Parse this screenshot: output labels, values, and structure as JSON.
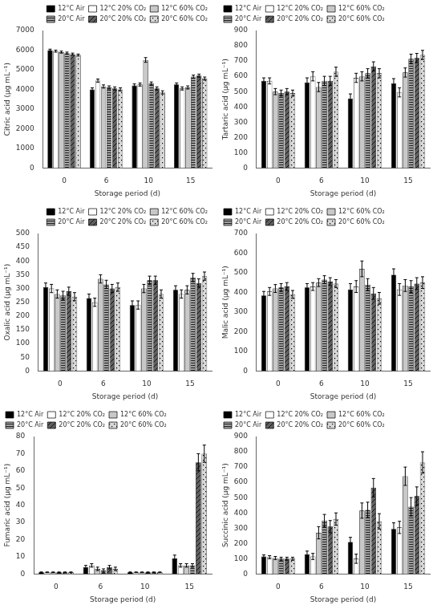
{
  "chart_data": [
    {
      "type": "bar",
      "categories": [
        "0",
        "6",
        "10",
        "15"
      ],
      "xlabel": "Storage period (d)",
      "ylabel": "Citric acid (μg mL⁻¹)",
      "ylim": [
        0,
        7000
      ],
      "yticks": [
        0,
        1000,
        2000,
        3000,
        4000,
        5000,
        6000,
        7000
      ],
      "grid": false,
      "legend": "upper right",
      "series": [
        {
          "name": "12°C Air",
          "color": "#000000",
          "values": [
            6000,
            4000,
            4200,
            4250
          ],
          "errors": [
            50,
            80,
            80,
            80
          ]
        },
        {
          "name": "12°C 20% CO₂",
          "color": "#ffffff",
          "values": [
            5950,
            4450,
            4250,
            4050
          ],
          "errors": [
            50,
            80,
            80,
            80
          ]
        },
        {
          "name": "12°C 60% CO₂",
          "color": "#c8c8c8",
          "values": [
            5900,
            4150,
            5500,
            4100
          ],
          "errors": [
            50,
            80,
            120,
            80
          ]
        },
        {
          "name": "20°C Air",
          "color": "#a0a0a0",
          "values": [
            5850,
            4100,
            4300,
            4650
          ],
          "errors": [
            50,
            80,
            80,
            80
          ]
        },
        {
          "name": "20°C 20% CO₂",
          "color": "#606060",
          "values": [
            5800,
            4050,
            4050,
            4700
          ],
          "errors": [
            50,
            80,
            80,
            80
          ]
        },
        {
          "name": "20°C 60% CO₂",
          "color": "#d8d8d8",
          "values": [
            5750,
            4000,
            3850,
            4550
          ],
          "errors": [
            50,
            80,
            80,
            80
          ]
        }
      ]
    },
    {
      "type": "bar",
      "categories": [
        "0",
        "6",
        "10",
        "15"
      ],
      "xlabel": "Storage period (d)",
      "ylabel": "Tartaric acid (μg mL⁻¹)",
      "ylim": [
        0,
        900
      ],
      "yticks": [
        0,
        100,
        200,
        300,
        400,
        500,
        600,
        700,
        800,
        900
      ],
      "grid": false,
      "legend": "upper left",
      "series": [
        {
          "name": "12°C Air",
          "color": "#000000",
          "values": [
            570,
            560,
            455,
            555
          ],
          "errors": [
            20,
            30,
            30,
            30
          ]
        },
        {
          "name": "12°C 20% CO₂",
          "color": "#ffffff",
          "values": [
            570,
            600,
            590,
            495
          ],
          "errors": [
            20,
            30,
            30,
            30
          ]
        },
        {
          "name": "12°C 60% CO₂",
          "color": "#c8c8c8",
          "values": [
            500,
            530,
            600,
            625
          ],
          "errors": [
            20,
            30,
            30,
            30
          ]
        },
        {
          "name": "20°C Air",
          "color": "#a0a0a0",
          "values": [
            490,
            570,
            620,
            715
          ],
          "errors": [
            20,
            30,
            30,
            30
          ]
        },
        {
          "name": "20°C 20% CO₂",
          "color": "#606060",
          "values": [
            500,
            570,
            665,
            720
          ],
          "errors": [
            20,
            30,
            30,
            30
          ]
        },
        {
          "name": "20°C 60% CO₂",
          "color": "#d8d8d8",
          "values": [
            490,
            630,
            620,
            740
          ],
          "errors": [
            20,
            30,
            30,
            30
          ]
        }
      ]
    },
    {
      "type": "bar",
      "categories": [
        "0",
        "6",
        "10",
        "15"
      ],
      "xlabel": "Storage period (d)",
      "ylabel": "Oxalic acid (μg mL⁻¹)",
      "ylim": [
        0,
        500
      ],
      "yticks": [
        0,
        50,
        100,
        150,
        200,
        250,
        300,
        350,
        400,
        450,
        500
      ],
      "grid": false,
      "legend": "upper right",
      "series": [
        {
          "name": "12°C Air",
          "color": "#000000",
          "values": [
            305,
            265,
            240,
            295
          ],
          "errors": [
            15,
            15,
            15,
            15
          ]
        },
        {
          "name": "12°C 20% CO₂",
          "color": "#ffffff",
          "values": [
            300,
            250,
            240,
            280
          ],
          "errors": [
            15,
            15,
            15,
            15
          ]
        },
        {
          "name": "12°C 60% CO₂",
          "color": "#c8c8c8",
          "values": [
            280,
            335,
            300,
            295
          ],
          "errors": [
            15,
            15,
            15,
            15
          ]
        },
        {
          "name": "20°C Air",
          "color": "#a0a0a0",
          "values": [
            275,
            315,
            330,
            340
          ],
          "errors": [
            15,
            15,
            15,
            15
          ]
        },
        {
          "name": "20°C 20% CO₂",
          "color": "#606060",
          "values": [
            290,
            300,
            330,
            320
          ],
          "errors": [
            15,
            15,
            15,
            15
          ]
        },
        {
          "name": "20°C 60% CO₂",
          "color": "#d8d8d8",
          "values": [
            270,
            305,
            280,
            345
          ],
          "errors": [
            15,
            15,
            15,
            15
          ]
        }
      ]
    },
    {
      "type": "bar",
      "categories": [
        "0",
        "6",
        "10",
        "15"
      ],
      "xlabel": "Storage period (d)",
      "ylabel": "Malic acid (μg mL⁻¹)",
      "ylim": [
        0,
        700
      ],
      "yticks": [
        0,
        100,
        200,
        300,
        400,
        500,
        600,
        700
      ],
      "grid": false,
      "legend": "upper left",
      "series": [
        {
          "name": "12°C Air",
          "color": "#000000",
          "values": [
            385,
            425,
            415,
            490
          ],
          "errors": [
            20,
            20,
            30,
            30
          ]
        },
        {
          "name": "12°C 20% CO₂",
          "color": "#ffffff",
          "values": [
            405,
            430,
            430,
            415
          ],
          "errors": [
            20,
            20,
            30,
            30
          ]
        },
        {
          "name": "12°C 60% CO₂",
          "color": "#c8c8c8",
          "values": [
            420,
            450,
            520,
            435
          ],
          "errors": [
            20,
            20,
            40,
            30
          ]
        },
        {
          "name": "20°C Air",
          "color": "#a0a0a0",
          "values": [
            425,
            465,
            440,
            430
          ],
          "errors": [
            20,
            20,
            30,
            30
          ]
        },
        {
          "name": "20°C 20% CO₂",
          "color": "#606060",
          "values": [
            430,
            455,
            395,
            445
          ],
          "errors": [
            20,
            20,
            30,
            30
          ]
        },
        {
          "name": "20°C 60% CO₂",
          "color": "#d8d8d8",
          "values": [
            390,
            445,
            370,
            450
          ],
          "errors": [
            20,
            20,
            30,
            30
          ]
        }
      ]
    },
    {
      "type": "bar",
      "categories": [
        "0",
        "6",
        "10",
        "15"
      ],
      "xlabel": "Storage period (d)",
      "ylabel": "Fumaric acid (μg mL⁻¹)",
      "ylim": [
        0,
        80
      ],
      "yticks": [
        0,
        10,
        20,
        30,
        40,
        50,
        60,
        70,
        80
      ],
      "grid": false,
      "legend": "upper left",
      "series": [
        {
          "name": "12°C Air",
          "color": "#000000",
          "values": [
            1,
            4,
            1,
            9
          ],
          "errors": [
            0.2,
            1,
            0.2,
            2
          ]
        },
        {
          "name": "12°C 20% CO₂",
          "color": "#ffffff",
          "values": [
            1,
            5,
            1,
            5
          ],
          "errors": [
            0.2,
            1,
            0.2,
            1
          ]
        },
        {
          "name": "12°C 60% CO₂",
          "color": "#c8c8c8",
          "values": [
            1,
            3,
            1,
            5
          ],
          "errors": [
            0.2,
            1,
            0.2,
            1
          ]
        },
        {
          "name": "20°C Air",
          "color": "#a0a0a0",
          "values": [
            1,
            2,
            1,
            5
          ],
          "errors": [
            0.2,
            1,
            0.2,
            1
          ]
        },
        {
          "name": "20°C 20% CO₂",
          "color": "#606060",
          "values": [
            1,
            4,
            1,
            65
          ],
          "errors": [
            0.2,
            1,
            0.2,
            5
          ]
        },
        {
          "name": "20°C 60% CO₂",
          "color": "#d8d8d8",
          "values": [
            1,
            3,
            1,
            70
          ],
          "errors": [
            0.2,
            1,
            0.2,
            5
          ]
        }
      ]
    },
    {
      "type": "bar",
      "categories": [
        "0",
        "6",
        "10",
        "15"
      ],
      "xlabel": "Storage period (d)",
      "ylabel": "Succinic acid (μg mL⁻¹)",
      "ylim": [
        0,
        900
      ],
      "yticks": [
        0,
        100,
        200,
        300,
        400,
        500,
        600,
        700,
        800,
        900
      ],
      "grid": false,
      "legend": "upper left",
      "series": [
        {
          "name": "12°C Air",
          "color": "#000000",
          "values": [
            115,
            130,
            210,
            295
          ],
          "errors": [
            10,
            20,
            30,
            40
          ]
        },
        {
          "name": "12°C 20% CO₂",
          "color": "#ffffff",
          "values": [
            110,
            115,
            100,
            305
          ],
          "errors": [
            10,
            20,
            30,
            40
          ]
        },
        {
          "name": "12°C 60% CO₂",
          "color": "#c8c8c8",
          "values": [
            105,
            270,
            415,
            640
          ],
          "errors": [
            10,
            40,
            50,
            60
          ]
        },
        {
          "name": "20°C Air",
          "color": "#a0a0a0",
          "values": [
            100,
            350,
            420,
            440
          ],
          "errors": [
            10,
            40,
            50,
            60
          ]
        },
        {
          "name": "20°C 20% CO₂",
          "color": "#606060",
          "values": [
            100,
            310,
            565,
            510
          ],
          "errors": [
            10,
            40,
            60,
            60
          ]
        },
        {
          "name": "20°C 60% CO₂",
          "color": "#d8d8d8",
          "values": [
            100,
            360,
            345,
            730
          ],
          "errors": [
            10,
            40,
            50,
            70
          ]
        }
      ]
    }
  ]
}
